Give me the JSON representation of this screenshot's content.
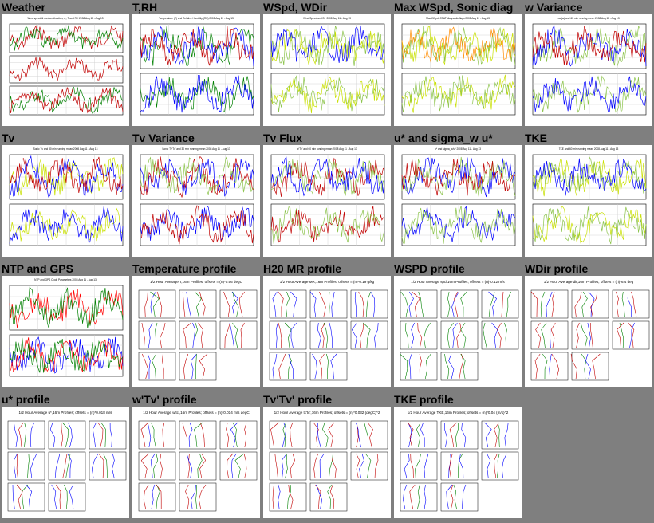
{
  "grid": {
    "cells": [
      {
        "title": "Weather",
        "kind": "ts3",
        "subtitle": "Wind speed & median direction, u,, T and RH 2008 Aug 11 - Aug 13",
        "colors": [
          "#c00000",
          "#008000",
          "#c00000"
        ]
      },
      {
        "title": "T,RH",
        "kind": "ts2",
        "subtitle": "Temperature (T) and Relative Humidity (RH) 2008 Aug 11 - Aug 13",
        "colors": [
          "#008000",
          "#0000ff",
          "#c00000"
        ]
      },
      {
        "title": "WSpd, WDir",
        "kind": "ts2",
        "subtitle": "Wind Speed and Dir 2008 Aug 11 - Aug 13",
        "colors": [
          "#8bc34a",
          "#c8e000",
          "#0000ff"
        ]
      },
      {
        "title": "Max WSpd, Sonic diag",
        "kind": "ts2",
        "subtitle": "Max WSpd, CSAT diagnostic flags 2008 Aug 11 - Aug 13",
        "colors": [
          "#c8e000",
          "#8bc34a",
          "#ff8c00"
        ]
      },
      {
        "title": "w Variance",
        "kind": "ts2",
        "subtitle": "var(w) and 60 min running mean 2008 Aug 11 - Aug 13",
        "colors": [
          "#8bc34a",
          "#0000ff",
          "#c00000"
        ]
      },
      {
        "title": "Tv",
        "kind": "ts2",
        "subtitle": "Sonic Tv and 30 min running mean 2008 Aug 11 - Aug 13",
        "colors": [
          "#c8e000",
          "#0000ff",
          "#c00000"
        ]
      },
      {
        "title": "Tv Variance",
        "kind": "ts1",
        "subtitle": "Sonic Tv'Tv' and 30 min running mean 2008 Aug 11 - Aug 13",
        "colors": [
          "#0000ff",
          "#c00000",
          "#8bc34a"
        ]
      },
      {
        "title": "Tv Flux",
        "kind": "ts2",
        "subtitle": "w'Tv' and 60 min running mean 2008 Aug 11 - Aug 13",
        "colors": [
          "#c00000",
          "#8bc34a",
          "#0000ff"
        ]
      },
      {
        "title": "u* and sigma_w u*",
        "kind": "ts2",
        "subtitle": "u* and sigma_w/u* 2008 Aug 11 - Aug 13",
        "colors": [
          "#0000ff",
          "#8bc34a",
          "#c00000"
        ]
      },
      {
        "title": "TKE",
        "kind": "ts2",
        "subtitle": "TKE and 60 min running mean 2008 Aug 11 - Aug 13",
        "colors": [
          "#c8e000",
          "#8bc34a",
          "#0000ff"
        ]
      },
      {
        "title": "NTP and GPS",
        "kind": "ntp",
        "subtitle": "NTP and GPS Clock Parameters 2008 Aug 11 - Aug 13",
        "colors": [
          "#ff0000",
          "#0000ff",
          "#008000"
        ]
      },
      {
        "title": "Temperature profile",
        "kind": "prof",
        "subtitle": "1/2 Hour Average T,16m Profiles; offsets = (n)*0.56 degC",
        "colors": [
          "#c00000",
          "#0000ff",
          "#008000"
        ]
      },
      {
        "title": "H20 MR profile",
        "kind": "prof",
        "subtitle": "1/2 Hour Average MR,16m Profiles; offsets = (n)*0.19 g/kg",
        "colors": [
          "#0000ff",
          "#c00000",
          "#008000"
        ]
      },
      {
        "title": "WSPD profile",
        "kind": "prof",
        "subtitle": "1/2 Hour Average spd,16m Profiles; offsets = (n)*0.12 m/s",
        "colors": [
          "#008000",
          "#0000ff",
          "#c00000"
        ]
      },
      {
        "title": "WDir profile",
        "kind": "prof",
        "subtitle": "1/2 Hour Average dir,16m Profiles; offsets = (n)*6.4 deg",
        "colors": [
          "#c00000",
          "#008000",
          "#0000ff"
        ]
      },
      {
        "title": "u* profile",
        "kind": "prof",
        "subtitle": "1/2 Hour Average u*,16m Profiles; offsets = (n)*0.018 m/s",
        "colors": [
          "#0000ff",
          "#c00000",
          "#008000"
        ]
      },
      {
        "title": "w'Tv' profile",
        "kind": "prof",
        "subtitle": "1/2 Hour Average w'tc',16m Profiles; offsets = (n)*0.014 m/s degC",
        "colors": [
          "#c00000",
          "#0000ff",
          "#008000"
        ]
      },
      {
        "title": "Tv'Tv' profile",
        "kind": "prof",
        "subtitle": "1/2 Hour Average tc'tc',16m Profiles; offsets = (n)*0.032 (degC)^2",
        "colors": [
          "#c00000",
          "#0000ff",
          "#008000"
        ]
      },
      {
        "title": "TKE profile",
        "kind": "prof",
        "subtitle": "1/2 Hour Average TKE,16m Profiles; offsets = (n)*0.04 (m/s)^2",
        "colors": [
          "#0000ff",
          "#c00000",
          "#008000"
        ]
      }
    ]
  }
}
